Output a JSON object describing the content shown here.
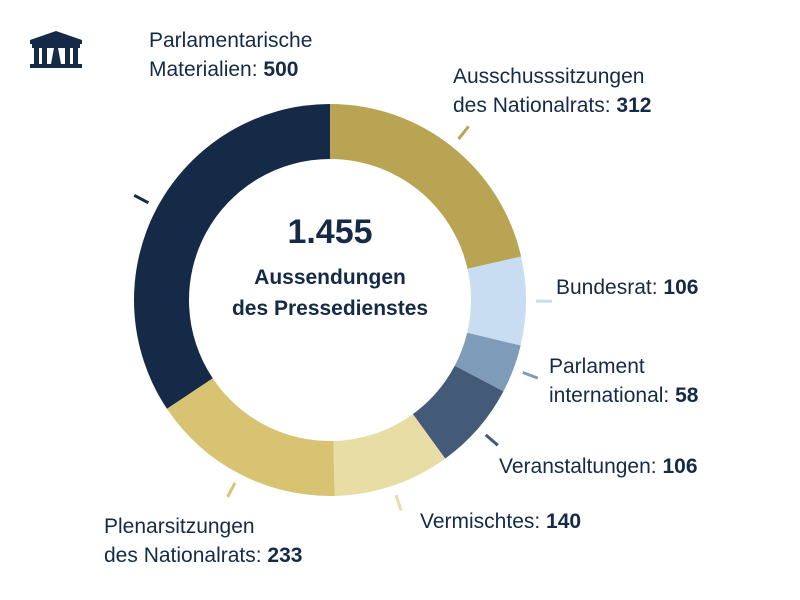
{
  "chart_data": {
    "type": "pie",
    "donut": true,
    "center_value": "1.455",
    "center_label_lines": [
      "Aussendungen",
      "des Pressedienstes"
    ],
    "start": "top",
    "direction": "clockwise",
    "slices": [
      {
        "label_lines": [
          "Ausschusssitzungen",
          "des Nationalrats: "
        ],
        "value_text": "312",
        "value": 312,
        "color": "#b8a452"
      },
      {
        "label_lines": [
          "Bundesrat: "
        ],
        "value_text": "106",
        "value": 106,
        "color": "#c9ddf2"
      },
      {
        "label_lines": [
          "Parlament",
          "international: "
        ],
        "value_text": "58",
        "value": 58,
        "color": "#7f9bba"
      },
      {
        "label_lines": [
          "Veranstaltungen: "
        ],
        "value_text": "106",
        "value": 106,
        "color": "#435a78"
      },
      {
        "label_lines": [
          "Vermischtes: "
        ],
        "value_text": "140",
        "value": 140,
        "color": "#e9dda6"
      },
      {
        "label_lines": [
          "Plenarsitzungen",
          "des Nationalrats: "
        ],
        "value_text": "233",
        "value": 233,
        "color": "#d8c373"
      },
      {
        "label_lines": [
          "Parlamentarische",
          "Materialien: "
        ],
        "value_text": "500",
        "value": 500,
        "color": "#152a47"
      }
    ]
  },
  "logo": {
    "icon": "parliament-building-icon",
    "color": "#152a47"
  }
}
